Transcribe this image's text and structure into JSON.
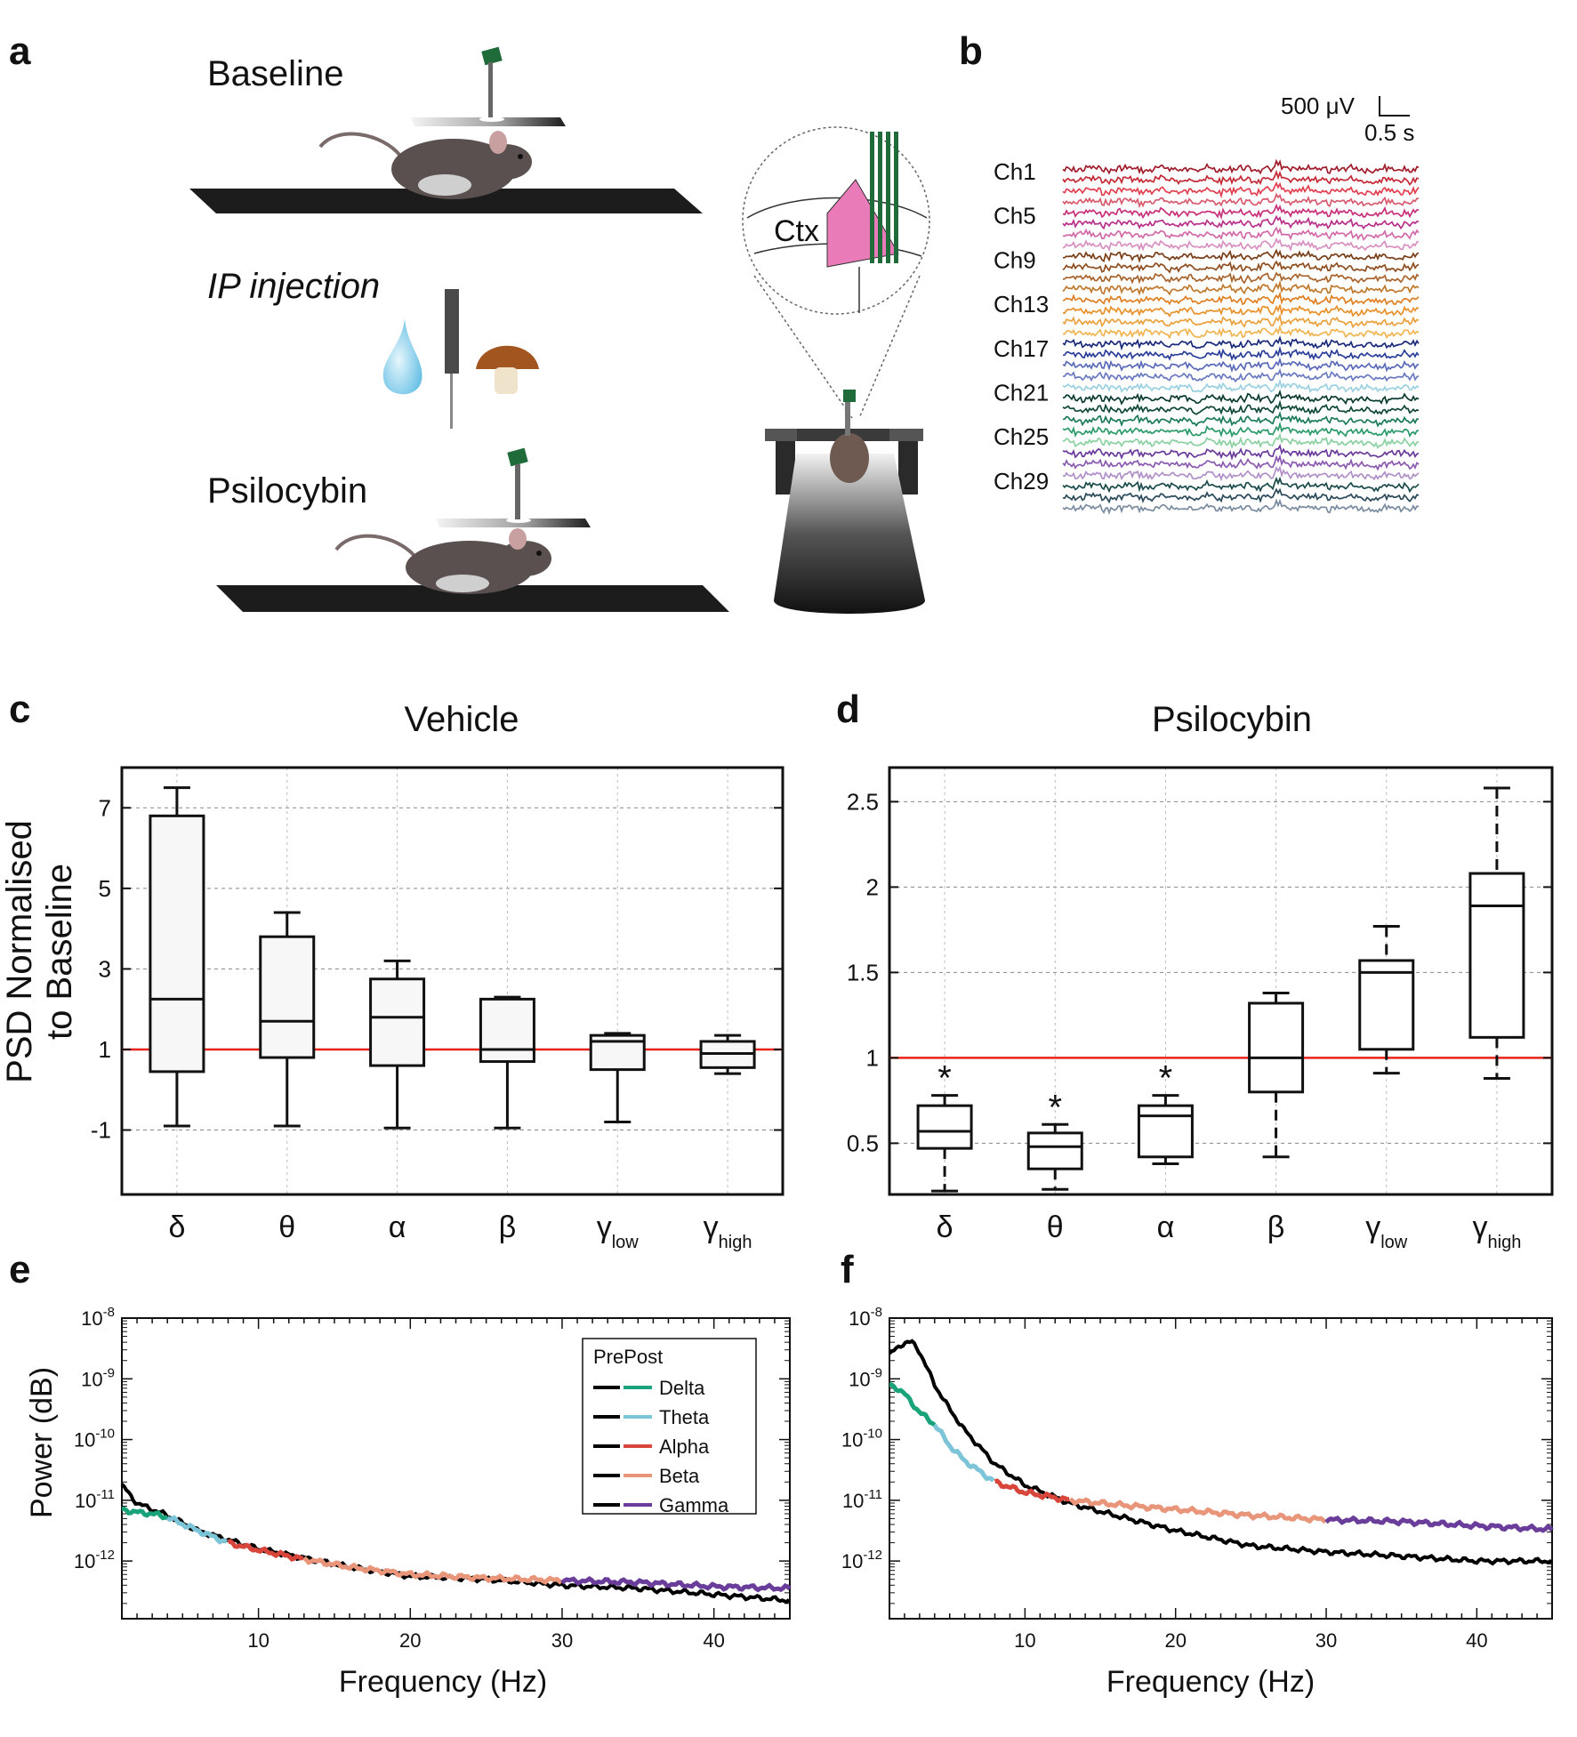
{
  "panels": {
    "a": "a",
    "b": "b",
    "c": "c",
    "d": "d",
    "e": "e",
    "f": "f"
  },
  "colors": {
    "delta": "#1aa37a",
    "theta": "#7cc4d8",
    "alpha": "#d8453b",
    "beta": "#e8957a",
    "gamma": "#6a3d9a",
    "baseline_line": "#e8231a",
    "tissue_pink": "#e87bb8",
    "probe_green": "#1f6b3a"
  },
  "panel_a": {
    "baseline_label": "Baseline",
    "ip_label": "IP injection",
    "psilocybin_label": "Psilocybin",
    "ctx_label": "Ctx"
  },
  "panel_b": {
    "scale_v": "500 μV",
    "scale_t": "0.5 s",
    "channel_labels": [
      "Ch1",
      "Ch5",
      "Ch9",
      "Ch13",
      "Ch17",
      "Ch21",
      "Ch25",
      "Ch29"
    ],
    "trace_colors": [
      "#a01c2a",
      "#c32a36",
      "#e04050",
      "#d85a6e",
      "#c8307a",
      "#b8308a",
      "#d26aa8",
      "#d890c0",
      "#7a3e18",
      "#8e4e20",
      "#a8642c",
      "#c0782c",
      "#de7f22",
      "#e8902a",
      "#eaa03c",
      "#f0b450",
      "#1a2a7a",
      "#2a3e9a",
      "#5a6ab8",
      "#6a7ac0",
      "#9ad0e0",
      "#0a3a30",
      "#104838",
      "#1a7a5a",
      "#2a9a6a",
      "#8ad0a0",
      "#6a3a9a",
      "#8a5ab0",
      "#b090c8",
      "#1a4a4a",
      "#2a4a5a",
      "#7a8ca0"
    ]
  },
  "chart_data": [
    {
      "id": "c",
      "type": "box",
      "title": "Vehicle",
      "ylabel": "PSD Normalised\nto Baseline",
      "categories": [
        "δ",
        "θ",
        "α",
        "β",
        "γ_low",
        "γ_high"
      ],
      "category_main": [
        "δ",
        "θ",
        "α",
        "β",
        "γ",
        "γ"
      ],
      "category_sub": [
        "",
        "",
        "",
        "",
        "low",
        "high"
      ],
      "ylim": [
        -2.6,
        8.0
      ],
      "yticks": [
        -1,
        1,
        3,
        5,
        7
      ],
      "ytick_labels": [
        "-1",
        "1",
        "3",
        "5",
        "7"
      ],
      "reference_line": 1,
      "boxes": [
        {
          "whisker_low": -0.9,
          "q1": 0.45,
          "median": 2.25,
          "q3": 6.8,
          "whisker_high": 7.5
        },
        {
          "whisker_low": -0.9,
          "q1": 0.8,
          "median": 1.7,
          "q3": 3.8,
          "whisker_high": 4.4
        },
        {
          "whisker_low": -0.95,
          "q1": 0.6,
          "median": 1.8,
          "q3": 2.75,
          "whisker_high": 3.2
        },
        {
          "whisker_low": -0.95,
          "q1": 0.7,
          "median": 1.0,
          "q3": 2.25,
          "whisker_high": 2.3
        },
        {
          "whisker_low": -0.8,
          "q1": 0.5,
          "median": 1.2,
          "q3": 1.35,
          "whisker_high": 1.4
        },
        {
          "whisker_low": 0.4,
          "q1": 0.55,
          "median": 0.9,
          "q3": 1.2,
          "whisker_high": 1.35
        }
      ]
    },
    {
      "id": "d",
      "type": "box",
      "title": "Psilocybin",
      "categories": [
        "δ",
        "θ",
        "α",
        "β",
        "γ_low",
        "γ_high"
      ],
      "category_main": [
        "δ",
        "θ",
        "α",
        "β",
        "γ",
        "γ"
      ],
      "category_sub": [
        "",
        "",
        "",
        "",
        "low",
        "high"
      ],
      "ylim": [
        0.2,
        2.7
      ],
      "yticks": [
        0.5,
        1,
        1.5,
        2,
        2.5
      ],
      "ytick_labels": [
        "0.5",
        "1",
        "1.5",
        "2",
        "2.5"
      ],
      "reference_line": 1,
      "significance": [
        "*",
        "*",
        "*",
        "",
        "",
        ""
      ],
      "boxes": [
        {
          "whisker_low": 0.22,
          "q1": 0.47,
          "median": 0.57,
          "q3": 0.72,
          "whisker_high": 0.78
        },
        {
          "whisker_low": 0.23,
          "q1": 0.35,
          "median": 0.48,
          "q3": 0.56,
          "whisker_high": 0.61
        },
        {
          "whisker_low": 0.38,
          "q1": 0.42,
          "median": 0.66,
          "q3": 0.72,
          "whisker_high": 0.78
        },
        {
          "whisker_low": 0.42,
          "q1": 0.8,
          "median": 1.0,
          "q3": 1.32,
          "whisker_high": 1.38
        },
        {
          "whisker_low": 0.91,
          "q1": 1.05,
          "median": 1.5,
          "q3": 1.57,
          "whisker_high": 1.77
        },
        {
          "whisker_low": 0.88,
          "q1": 1.12,
          "median": 1.89,
          "q3": 2.08,
          "whisker_high": 2.58
        }
      ]
    },
    {
      "id": "e",
      "type": "line",
      "ylog": true,
      "xlabel": "Frequency (Hz)",
      "ylabel": "Power (dB)",
      "xlim": [
        1,
        45
      ],
      "ylim_log10": [
        -12.95,
        -8.0
      ],
      "xticks": [
        10,
        20,
        30,
        40
      ],
      "ytick_exponents": [
        -8,
        -9,
        -10,
        -11,
        -12
      ],
      "ytick_base": "10",
      "legend": {
        "title": "PrePost",
        "entries": [
          "Delta",
          "Theta",
          "Alpha",
          "Beta",
          "Gamma"
        ],
        "position": "top-right"
      },
      "band_edges_hz": [
        1,
        4,
        8,
        13,
        30,
        45
      ],
      "pre": {
        "x": [
          1,
          2,
          3,
          4,
          6,
          8,
          10,
          13,
          16,
          20,
          25,
          30,
          35,
          40,
          45
        ],
        "log10_y": [
          -10.75,
          -11.05,
          -11.15,
          -11.25,
          -11.5,
          -11.65,
          -11.8,
          -11.95,
          -12.1,
          -12.25,
          -12.3,
          -12.4,
          -12.45,
          -12.55,
          -12.65
        ]
      },
      "post": {
        "x": [
          1,
          2,
          3,
          4,
          6,
          8,
          10,
          13,
          16,
          20,
          25,
          30,
          35,
          40,
          45
        ],
        "log10_y": [
          -11.15,
          -11.2,
          -11.22,
          -11.28,
          -11.5,
          -11.7,
          -11.82,
          -11.97,
          -12.1,
          -12.22,
          -12.28,
          -12.32,
          -12.35,
          -12.42,
          -12.45
        ]
      }
    },
    {
      "id": "f",
      "type": "line",
      "ylog": true,
      "xlabel": "Frequency (Hz)",
      "xlim": [
        1,
        45
      ],
      "ylim_log10": [
        -12.95,
        -8.0
      ],
      "xticks": [
        10,
        20,
        30,
        40
      ],
      "ytick_exponents": [
        -8,
        -9,
        -10,
        -11,
        -12
      ],
      "ytick_base": "10",
      "band_edges_hz": [
        1,
        4,
        8,
        13,
        30,
        45
      ],
      "pre": {
        "x": [
          1,
          1.5,
          2,
          2.5,
          3,
          4,
          5,
          6,
          8,
          10,
          13,
          16,
          20,
          25,
          30,
          35,
          40,
          45
        ],
        "log10_y": [
          -8.6,
          -8.5,
          -8.4,
          -8.4,
          -8.55,
          -9.1,
          -9.5,
          -9.85,
          -10.4,
          -10.75,
          -11.05,
          -11.25,
          -11.5,
          -11.75,
          -11.85,
          -11.92,
          -12.0,
          -12.0
        ]
      },
      "post": {
        "x": [
          1,
          1.5,
          2,
          3,
          4,
          5,
          6,
          8,
          10,
          13,
          16,
          20,
          25,
          30,
          35,
          40,
          45
        ],
        "log10_y": [
          -9.1,
          -9.15,
          -9.25,
          -9.55,
          -9.75,
          -10.1,
          -10.35,
          -10.7,
          -10.87,
          -11.0,
          -11.07,
          -11.15,
          -11.25,
          -11.32,
          -11.35,
          -11.42,
          -11.48
        ]
      }
    }
  ]
}
